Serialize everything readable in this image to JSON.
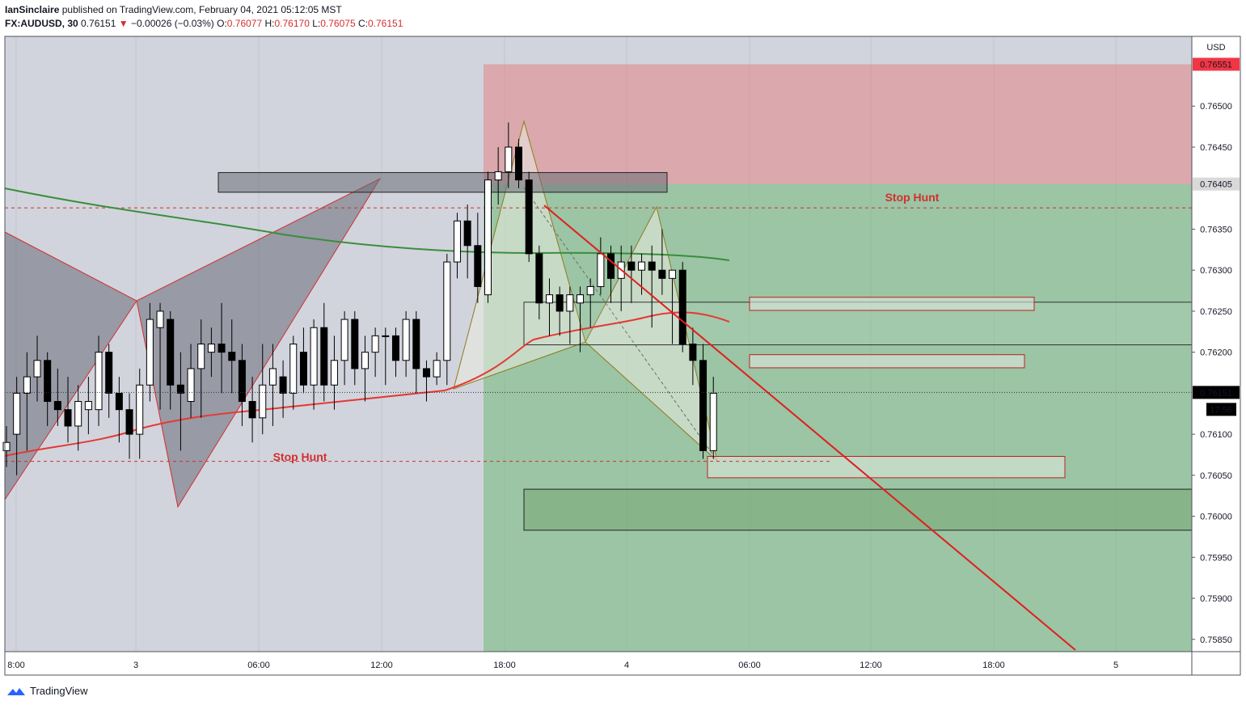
{
  "header": {
    "author": "IanSinclaire",
    "published_text": "published on TradingView.com, February 04, 2021 05:12:05 MST",
    "symbol": "FX:AUDUSD, 30",
    "last": "0.76151",
    "arrow": "▼",
    "change": "−0.00026 (−0.03%)",
    "o_label": "O:",
    "o_value": "0.76077",
    "h_label": "H:",
    "h_value": "0.76170",
    "l_label": "L:",
    "l_value": "0.76075",
    "c_label": "C:",
    "c_value": "0.76151"
  },
  "footer": {
    "brand": "TradingView",
    "logo_icon": "tradingview-logo-icon"
  },
  "axis": {
    "currency": "USD",
    "price_ticks": [
      "0.76500",
      "0.76450",
      "0.76350",
      "0.76300",
      "0.76250",
      "0.76200",
      "0.76100",
      "0.76050",
      "0.76000",
      "0.75950",
      "0.75900",
      "0.75850"
    ],
    "time_labels": [
      "8:00",
      "3",
      "06:00",
      "12:00",
      "18:00",
      "4",
      "06:00",
      "12:00",
      "18:00",
      "5"
    ],
    "stop_tag": "0.76551",
    "entry_tag": "0.76405",
    "last_tag": "0.76151",
    "countdown": "17:56"
  },
  "annotations": {
    "stop_hunt_1": "Stop Hunt",
    "stop_hunt_2": "Stop Hunt"
  },
  "colors": {
    "red": "#d32f2f",
    "green": "#388e3c",
    "bg": "#d1d4dc",
    "stop_zone": "rgba(229,115,115,0.45)",
    "target_zone": "rgba(76,175,80,0.4)"
  },
  "chart_data": {
    "type": "candlestick",
    "symbol": "FX:AUDUSD",
    "interval": "30",
    "ylim": [
      0.75835,
      0.76585
    ],
    "position": {
      "side": "short",
      "entry": 0.76405,
      "stop": 0.76551,
      "target": 0.75835
    },
    "candles": [
      [
        0.7608,
        0.7611,
        0.7606,
        0.7609
      ],
      [
        0.761,
        0.7617,
        0.7605,
        0.7615
      ],
      [
        0.7615,
        0.762,
        0.7608,
        0.7617
      ],
      [
        0.7617,
        0.7622,
        0.7614,
        0.7619
      ],
      [
        0.7619,
        0.762,
        0.7611,
        0.7614
      ],
      [
        0.7614,
        0.7618,
        0.7611,
        0.7613
      ],
      [
        0.7613,
        0.7617,
        0.7609,
        0.7611
      ],
      [
        0.7611,
        0.7616,
        0.7608,
        0.7614
      ],
      [
        0.7613,
        0.7617,
        0.761,
        0.7614
      ],
      [
        0.7613,
        0.7622,
        0.7611,
        0.762
      ],
      [
        0.762,
        0.7621,
        0.7612,
        0.7615
      ],
      [
        0.7615,
        0.7617,
        0.7609,
        0.7613
      ],
      [
        0.7613,
        0.7615,
        0.7607,
        0.761
      ],
      [
        0.761,
        0.7618,
        0.7607,
        0.7616
      ],
      [
        0.7616,
        0.7626,
        0.7614,
        0.7624
      ],
      [
        0.7623,
        0.7626,
        0.7613,
        0.7625
      ],
      [
        0.7624,
        0.7625,
        0.7613,
        0.7616
      ],
      [
        0.7616,
        0.762,
        0.7608,
        0.7615
      ],
      [
        0.7614,
        0.7621,
        0.7612,
        0.7618
      ],
      [
        0.7618,
        0.7624,
        0.7612,
        0.7621
      ],
      [
        0.762,
        0.7623,
        0.7617,
        0.7621
      ],
      [
        0.7621,
        0.7626,
        0.7615,
        0.762
      ],
      [
        0.762,
        0.7624,
        0.7615,
        0.7619
      ],
      [
        0.7619,
        0.7621,
        0.7611,
        0.7614
      ],
      [
        0.7614,
        0.7617,
        0.7609,
        0.7612
      ],
      [
        0.7612,
        0.7621,
        0.761,
        0.7616
      ],
      [
        0.7616,
        0.7621,
        0.7611,
        0.7618
      ],
      [
        0.7617,
        0.7619,
        0.7612,
        0.7615
      ],
      [
        0.7615,
        0.7622,
        0.7613,
        0.7621
      ],
      [
        0.762,
        0.7623,
        0.7615,
        0.7616
      ],
      [
        0.7616,
        0.7624,
        0.7613,
        0.7623
      ],
      [
        0.7623,
        0.7626,
        0.7614,
        0.7616
      ],
      [
        0.7616,
        0.7622,
        0.7613,
        0.7619
      ],
      [
        0.7619,
        0.7625,
        0.7616,
        0.7624
      ],
      [
        0.7624,
        0.7625,
        0.7616,
        0.7618
      ],
      [
        0.7618,
        0.7622,
        0.7614,
        0.762
      ],
      [
        0.762,
        0.7623,
        0.7617,
        0.7622
      ],
      [
        0.7622,
        0.7623,
        0.7616,
        0.7622
      ],
      [
        0.7622,
        0.7623,
        0.7617,
        0.7619
      ],
      [
        0.7619,
        0.7625,
        0.7617,
        0.7624
      ],
      [
        0.7624,
        0.7625,
        0.7615,
        0.7618
      ],
      [
        0.7618,
        0.7619,
        0.7614,
        0.7617
      ],
      [
        0.7617,
        0.762,
        0.7616,
        0.7619
      ],
      [
        0.7619,
        0.7632,
        0.7616,
        0.7631
      ],
      [
        0.7631,
        0.7637,
        0.7629,
        0.7636
      ],
      [
        0.7636,
        0.7638,
        0.7629,
        0.7633
      ],
      [
        0.7633,
        0.7637,
        0.7626,
        0.7628
      ],
      [
        0.7627,
        0.7642,
        0.7626,
        0.7641
      ],
      [
        0.7641,
        0.7645,
        0.7638,
        0.7642
      ],
      [
        0.7642,
        0.7648,
        0.764,
        0.7645
      ],
      [
        0.7645,
        0.7646,
        0.764,
        0.7641
      ],
      [
        0.7641,
        0.7642,
        0.7631,
        0.7632
      ],
      [
        0.7632,
        0.7633,
        0.7624,
        0.7626
      ],
      [
        0.7626,
        0.7629,
        0.7622,
        0.7627
      ],
      [
        0.7627,
        0.7628,
        0.7622,
        0.7625
      ],
      [
        0.7625,
        0.7628,
        0.7621,
        0.7627
      ],
      [
        0.7626,
        0.7628,
        0.762,
        0.7627
      ],
      [
        0.7627,
        0.7629,
        0.7623,
        0.7628
      ],
      [
        0.7628,
        0.7634,
        0.7627,
        0.7632
      ],
      [
        0.7632,
        0.7633,
        0.7626,
        0.7629
      ],
      [
        0.7629,
        0.7633,
        0.7625,
        0.7631
      ],
      [
        0.7631,
        0.7633,
        0.7626,
        0.763
      ],
      [
        0.763,
        0.7632,
        0.7627,
        0.7631
      ],
      [
        0.7631,
        0.7633,
        0.7623,
        0.763
      ],
      [
        0.763,
        0.7635,
        0.7627,
        0.7629
      ],
      [
        0.7629,
        0.763,
        0.7621,
        0.763
      ],
      [
        0.763,
        0.7631,
        0.762,
        0.7621
      ],
      [
        0.7621,
        0.7623,
        0.7616,
        0.7619
      ],
      [
        0.7619,
        0.7621,
        0.7607,
        0.7608
      ],
      [
        0.7608,
        0.7617,
        0.7607,
        0.7615
      ]
    ],
    "moving_averages": [
      {
        "color": "#388e3c",
        "from": [
          0.764,
          0.7637
        ],
        "to": [
          0.7631,
          0.7631
        ]
      },
      {
        "color": "#e53935",
        "from": [
          0.7608,
          0.7615
        ],
        "to": [
          0.7619,
          0.7624
        ]
      }
    ],
    "levels": {
      "stop_hunt_upper": 0.76376,
      "stop_hunt_lower": 0.76067,
      "last_price": 0.76151,
      "resistance_box": [
        0.76395,
        0.76419
      ],
      "box_mid_1": [
        0.76251,
        0.76267
      ],
      "box_mid_2": [
        0.76181,
        0.76197
      ],
      "box_low_1": [
        0.76047,
        0.76073
      ],
      "box_low_2": [
        0.75983,
        0.76033
      ],
      "range_box": [
        0.76209,
        0.76261
      ]
    }
  }
}
